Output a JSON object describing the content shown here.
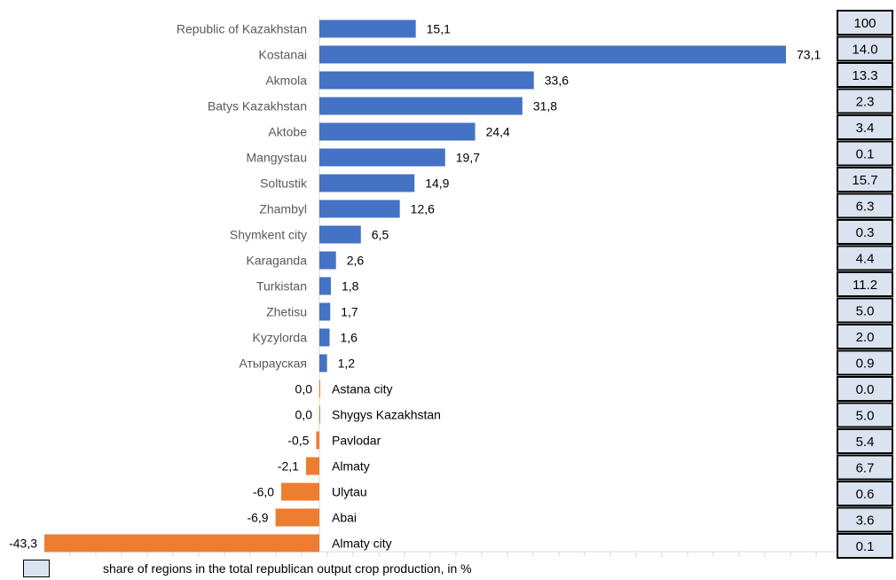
{
  "chart_data": {
    "type": "bar",
    "orientation": "horizontal",
    "categories": [
      "Republic of Kazakhstan",
      "Kostanai",
      "Akmola",
      "Batys Kazakhstan",
      "Aktobe",
      "Mangystau",
      "Soltustik",
      "Zhambyl",
      "Shymkent city",
      "Karaganda",
      "Turkistan",
      "Zhetisu",
      "Kyzylorda",
      "Атырауская",
      "Astana city",
      "Shygys Kazakhstan",
      "Pavlodar",
      "Almaty",
      "Ulytau",
      "Abai",
      "Almaty city"
    ],
    "values": [
      15.1,
      73.1,
      33.6,
      31.8,
      24.4,
      19.7,
      14.9,
      12.6,
      6.5,
      2.6,
      1.8,
      1.7,
      1.6,
      1.2,
      0.0,
      0.0,
      -0.5,
      -2.1,
      -6.0,
      -6.9,
      -43.3
    ],
    "value_labels": [
      "15,1",
      "73,1",
      "33,6",
      "31,8",
      "24,4",
      "19,7",
      "14,9",
      "12,6",
      "6,5",
      "2,6",
      "1,8",
      "1,7",
      "1,6",
      "1,2",
      "0,0",
      "0,0",
      "-0,5",
      "-2,1",
      "-6,0",
      "-6,9",
      "-43,3"
    ],
    "share_values": [
      "100",
      "14.0",
      "13.3",
      "2.3",
      "3.4",
      "0.1",
      "15.7",
      "6.3",
      "0.3",
      "4.4",
      "11.2",
      "5.0",
      "2.0",
      "0.9",
      "0.0",
      "5.0",
      "5.4",
      "6.7",
      "0.6",
      "3.6",
      "0.1"
    ],
    "xlim": [
      -43.3,
      73.1
    ],
    "grid": false,
    "colors": {
      "positive": "#4472c4",
      "negative": "#ed7d31",
      "share_box": "#dce3f0"
    },
    "legend": {
      "text": "share of regions in the total republican output crop production, in %",
      "position": "bottom-left"
    }
  }
}
